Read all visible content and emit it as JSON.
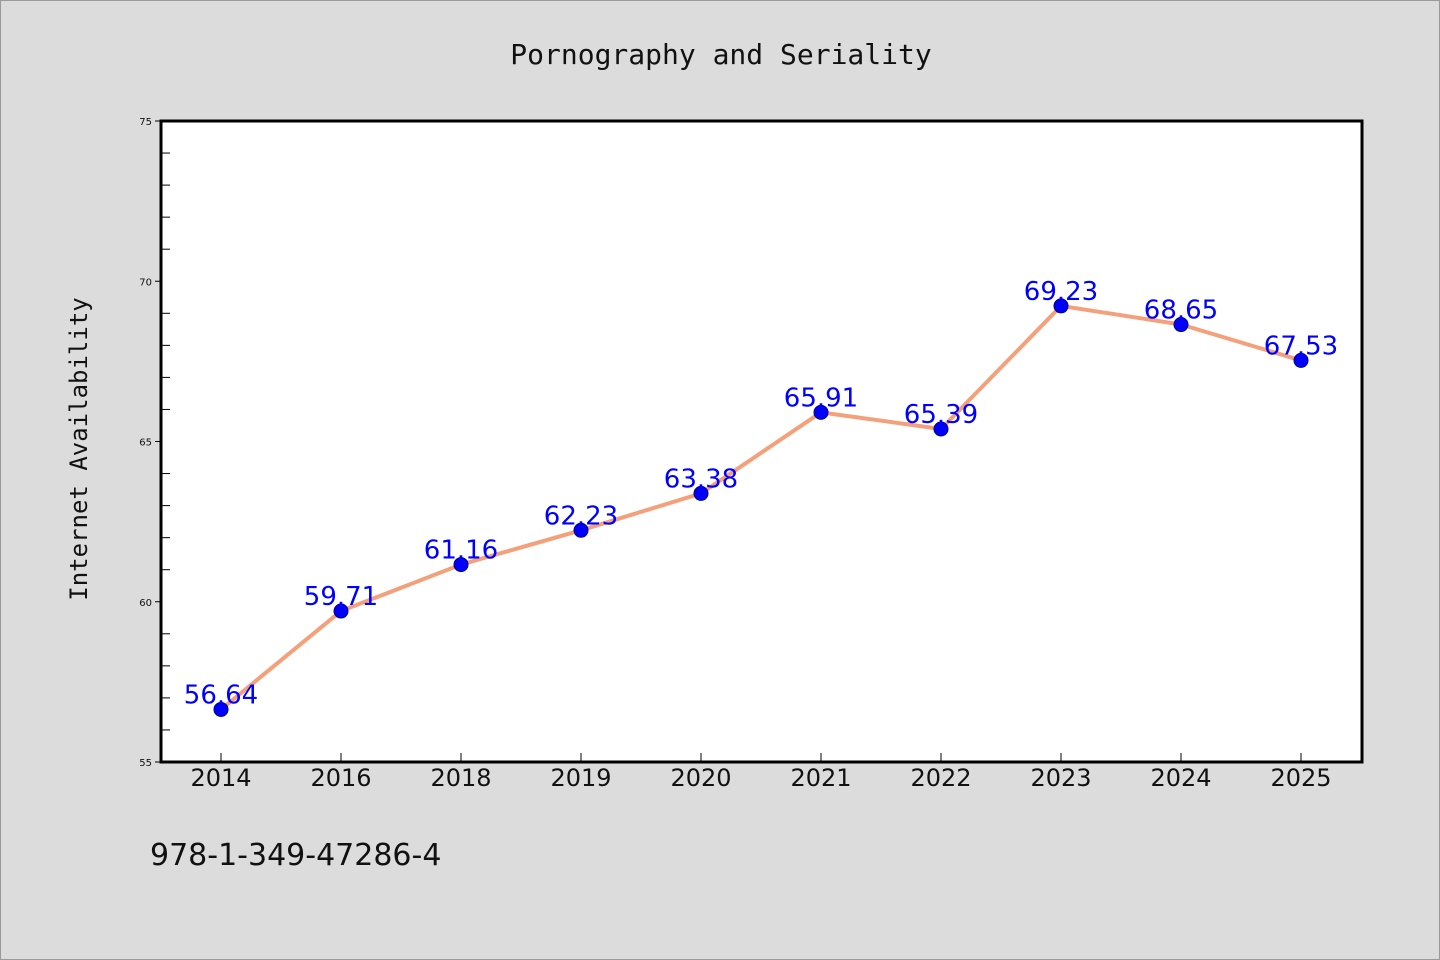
{
  "chart_data": {
    "type": "line",
    "title": "Pornography and Seriality",
    "xlabel": "",
    "ylabel": "Internet Availability",
    "categories": [
      "2014",
      "2016",
      "2018",
      "2019",
      "2020",
      "2021",
      "2022",
      "2023",
      "2024",
      "2025"
    ],
    "series": [
      {
        "values": [
          56.64,
          59.71,
          61.16,
          62.23,
          63.38,
          65.91,
          65.39,
          69.23,
          68.65,
          67.53
        ],
        "data_labels": [
          "56.64",
          "59.71",
          "61.16",
          "62.23",
          "63.38",
          "65.91",
          "65.39",
          "69.23",
          "68.65",
          "67.53"
        ]
      }
    ],
    "ylim": [
      55,
      75
    ],
    "yticks": [
      55,
      60,
      65,
      70,
      75
    ],
    "ytick_labels": [
      "55",
      "60",
      "65",
      "70",
      "75"
    ],
    "grid": false,
    "legend": "none"
  },
  "footer_text": "978-1-349-47286-4",
  "colors": {
    "background": "#dcdcdc",
    "plot_background": "#ffffff",
    "line": "#f4a07a",
    "marker": "#0000ff",
    "data_label": "#0000ff"
  }
}
